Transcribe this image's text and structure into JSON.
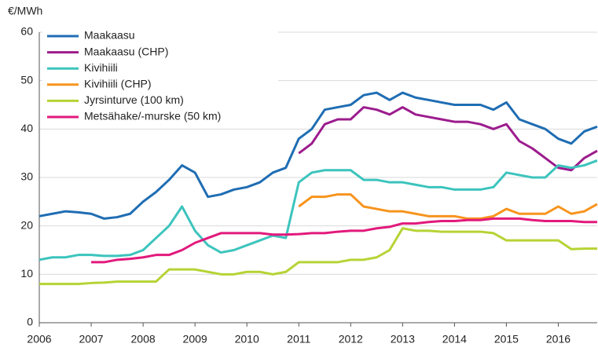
{
  "chart_data": {
    "type": "line",
    "ylabel": "€/MWh",
    "x": [
      2006,
      2006.25,
      2006.5,
      2006.75,
      2007,
      2007.25,
      2007.5,
      2007.75,
      2008,
      2008.25,
      2008.5,
      2008.75,
      2009,
      2009.25,
      2009.5,
      2009.75,
      2010,
      2010.25,
      2010.5,
      2010.75,
      2011,
      2011.25,
      2011.5,
      2011.75,
      2012,
      2012.25,
      2012.5,
      2012.75,
      2013,
      2013.25,
      2013.5,
      2013.75,
      2014,
      2014.25,
      2014.5,
      2014.75,
      2015,
      2015.25,
      2015.5,
      2015.75,
      2016,
      2016.25,
      2016.5,
      2016.75
    ],
    "series": [
      {
        "name": "Maakaasu",
        "color": "#1f6db3",
        "values": [
          22,
          22.5,
          23,
          22.8,
          22.5,
          21.5,
          21.8,
          22.5,
          25,
          27,
          29.5,
          32.5,
          31,
          26,
          26.5,
          27.5,
          28,
          29,
          31,
          32,
          38,
          40,
          44,
          44.5,
          45,
          47,
          47.5,
          46,
          47.5,
          46.5,
          46,
          45.5,
          45,
          45,
          45,
          44,
          45.5,
          42,
          41,
          40,
          38,
          37,
          39.5,
          40.5
        ]
      },
      {
        "name": "Maakaasu (CHP)",
        "color": "#9c1c8d",
        "values": [
          null,
          null,
          null,
          null,
          null,
          null,
          null,
          null,
          null,
          null,
          null,
          null,
          null,
          null,
          null,
          null,
          null,
          null,
          null,
          null,
          35,
          37,
          41,
          42,
          42,
          44.5,
          44,
          43,
          44.5,
          43,
          42.5,
          42,
          41.5,
          41.5,
          41,
          40,
          41,
          37.5,
          36,
          34,
          32,
          31.5,
          34,
          35.5
        ]
      },
      {
        "name": "Kivihiili",
        "color": "#3cc4bd",
        "values": [
          13,
          13.5,
          13.5,
          14,
          14,
          13.8,
          13.8,
          14,
          15,
          17.5,
          20,
          24,
          19,
          16,
          14.5,
          15,
          16,
          17,
          18,
          17.5,
          29,
          31,
          31.5,
          31.5,
          31.5,
          29.5,
          29.5,
          29,
          29,
          28.5,
          28,
          28,
          27.5,
          27.5,
          27.5,
          28,
          31,
          30.5,
          30,
          30,
          32.5,
          32,
          32.5,
          33.5
        ]
      },
      {
        "name": "Kivihiili (CHP)",
        "color": "#f7941d",
        "values": [
          null,
          null,
          null,
          null,
          null,
          null,
          null,
          null,
          null,
          null,
          null,
          null,
          null,
          null,
          null,
          null,
          null,
          null,
          null,
          null,
          24,
          26,
          26,
          26.5,
          26.5,
          24,
          23.5,
          23,
          23,
          22.5,
          22,
          22,
          22,
          21.5,
          21.5,
          22,
          23.5,
          22.5,
          22.5,
          22.5,
          24,
          22.5,
          23,
          24.5
        ]
      },
      {
        "name": "Jyrsinturve (100 km)",
        "color": "#b6d334",
        "values": [
          8,
          8,
          8,
          8,
          8.2,
          8.3,
          8.5,
          8.5,
          8.5,
          8.5,
          11,
          11,
          11,
          10.5,
          10,
          10,
          10.5,
          10.5,
          10,
          10.5,
          12.5,
          12.5,
          12.5,
          12.5,
          13,
          13,
          13.5,
          15,
          19.5,
          19,
          19,
          18.8,
          18.8,
          18.8,
          18.8,
          18.5,
          17,
          17,
          17,
          17,
          17,
          15.2,
          15.3,
          15.3
        ]
      },
      {
        "name": "Metsähake/-murske (50 km)",
        "color": "#e2197c",
        "values": [
          null,
          null,
          null,
          null,
          12.5,
          12.5,
          13,
          13.2,
          13.5,
          14,
          14,
          15,
          16.5,
          17.5,
          18.5,
          18.5,
          18.5,
          18.5,
          18.2,
          18.2,
          18.3,
          18.5,
          18.5,
          18.8,
          19,
          19,
          19.5,
          19.8,
          20.5,
          20.5,
          20.8,
          21,
          21,
          21.2,
          21.2,
          21.5,
          21.5,
          21.5,
          21.2,
          21,
          21,
          21,
          20.8,
          20.8
        ]
      }
    ],
    "xlim": [
      2006,
      2016.75
    ],
    "xticks": [
      2006,
      2007,
      2008,
      2009,
      2010,
      2011,
      2012,
      2013,
      2014,
      2015,
      2016
    ],
    "ylim": [
      0,
      60
    ],
    "yticks": [
      0,
      10,
      20,
      30,
      40,
      50,
      60
    ],
    "grid": true,
    "legend": "upper left"
  }
}
